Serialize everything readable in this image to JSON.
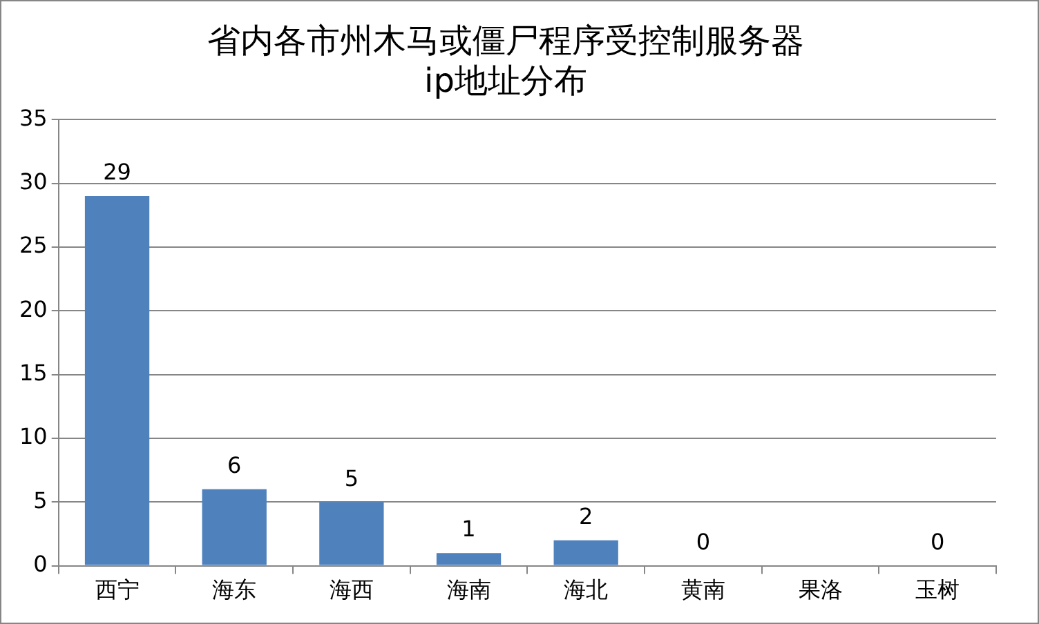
{
  "chart_data": {
    "type": "bar",
    "title": "省内各市州木马或僵尸程序受控制服务器\nip地址分布",
    "categories": [
      "西宁",
      "海东",
      "海西",
      "海南",
      "海北",
      "黄南",
      "果洛",
      "玉树"
    ],
    "values": [
      29,
      6,
      5,
      1,
      2,
      0,
      0,
      0
    ],
    "value_labels": [
      "29",
      "6",
      "5",
      "1",
      "2",
      "0",
      null,
      "0"
    ],
    "color": "#4f81bd",
    "ylim": [
      0,
      35
    ],
    "yticks": [
      0,
      5,
      10,
      15,
      20,
      25,
      30,
      35
    ],
    "grid": "y",
    "legend": false
  }
}
